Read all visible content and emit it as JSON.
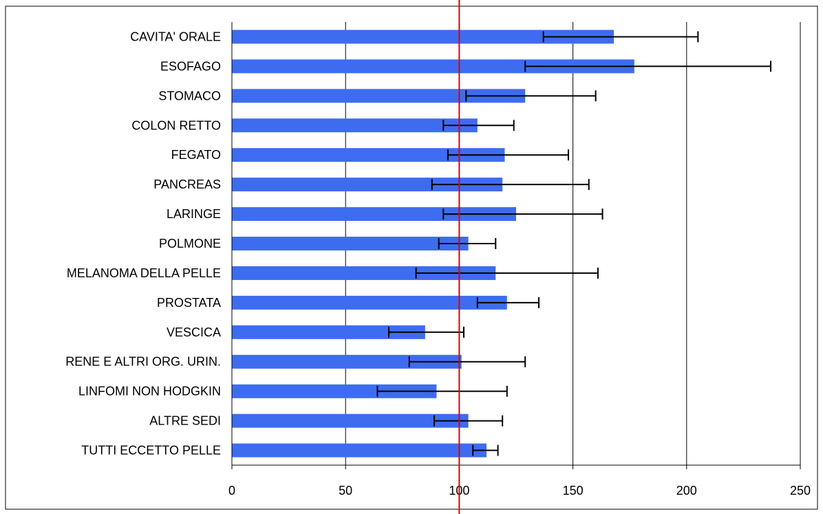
{
  "chart_data": {
    "type": "bar",
    "orientation": "horizontal",
    "title": "",
    "xlabel": "",
    "ylabel": "",
    "categories": [
      "CAVITA' ORALE",
      "ESOFAGO",
      "STOMACO",
      "COLON RETTO",
      "FEGATO",
      "PANCREAS",
      "LARINGE",
      "POLMONE",
      "MELANOMA DELLA PELLE",
      "PROSTATA",
      "VESCICA",
      "RENE E ALTRI ORG. URIN.",
      "LINFOMI NON HODGKIN",
      "ALTRE SEDI",
      "TUTTI ECCETTO PELLE"
    ],
    "values": [
      168,
      177,
      129,
      108,
      120,
      119,
      125,
      104,
      116,
      121,
      85,
      101,
      90,
      104,
      112
    ],
    "error_low": [
      137,
      129,
      103,
      93,
      95,
      88,
      93,
      91,
      81,
      108,
      69,
      78,
      64,
      89,
      106
    ],
    "error_high": [
      205,
      237,
      160,
      124,
      148,
      157,
      163,
      116,
      161,
      135,
      102,
      129,
      121,
      119,
      117
    ],
    "xlim": [
      0,
      250
    ],
    "x_ticks": [
      "0",
      "50",
      "100",
      "150",
      "200",
      "250"
    ],
    "reference_line": 100,
    "grid": true,
    "legend": false,
    "colors": {
      "bar": "#3e6cf0",
      "reference_line": "#e00000",
      "error_bar": "#000000",
      "grid": "#000000"
    }
  }
}
